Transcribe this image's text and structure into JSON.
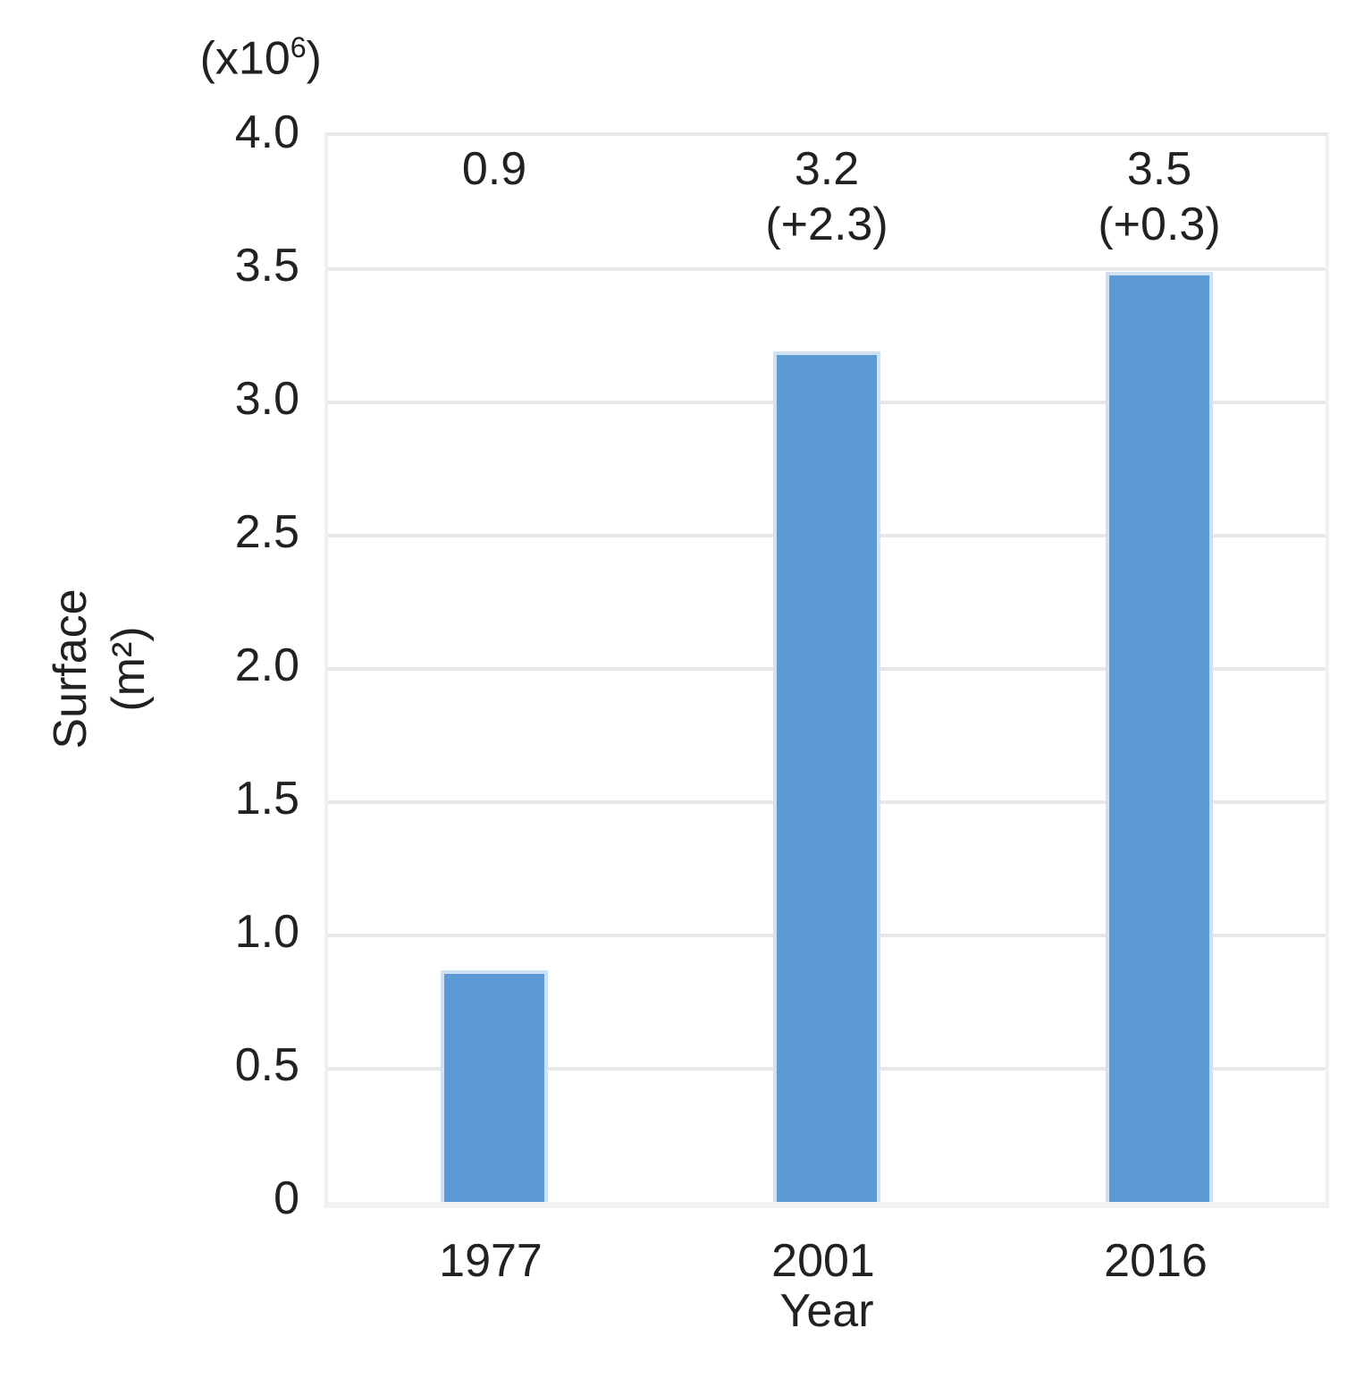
{
  "chart_data": {
    "type": "bar",
    "title": "",
    "categories": [
      "1977",
      "2001",
      "2016"
    ],
    "values": [
      0.87,
      3.19,
      3.49
    ],
    "bar_labels": [
      [
        "0.9"
      ],
      [
        "3.2",
        "(+2.3)"
      ],
      [
        "3.5",
        "(+0.3)"
      ]
    ],
    "xlabel": "Year",
    "ylabel_lines": [
      "Surface",
      "(m²)"
    ],
    "y_multiplier": {
      "base": "(x10",
      "exp": "6",
      "close": ")"
    },
    "ylim": [
      0,
      4
    ],
    "yticks": [
      {
        "label": "4.0",
        "value": 4.0
      },
      {
        "label": "3.5",
        "value": 3.5
      },
      {
        "label": "3.0",
        "value": 3.0
      },
      {
        "label": "2.5",
        "value": 2.5
      },
      {
        "label": "2.0",
        "value": 2.0
      },
      {
        "label": "1.5",
        "value": 1.5
      },
      {
        "label": "1.0",
        "value": 1.0
      },
      {
        "label": "0.5",
        "value": 0.5
      },
      {
        "label": "0",
        "value": 0.0
      }
    ],
    "grid": true,
    "legend": null,
    "colors": {
      "bar": "#5B9AD5",
      "bar_edge": "#CFE1F3",
      "grid": "#E7E7E7",
      "axis_line": "#F2F2F2",
      "text": "#212121"
    }
  }
}
